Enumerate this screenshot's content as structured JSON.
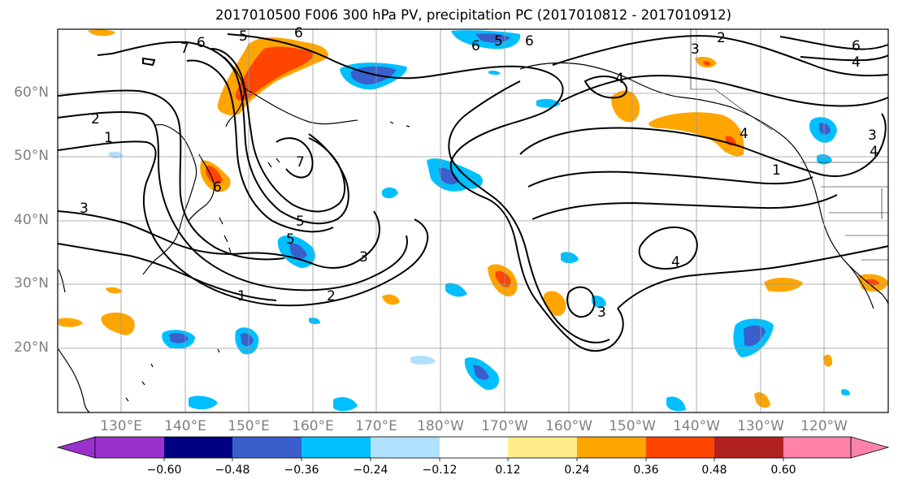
{
  "title": "2017010500 F006 300 hPa PV, precipitation PC (2017010812 - 2017010912)",
  "lat_labels": [
    "60°N",
    "50°N",
    "40°N",
    "30°N",
    "20°N"
  ],
  "lon_labels": [
    "130°E",
    "140°E",
    "150°E",
    "160°E",
    "170°E",
    "180°W",
    "170°W",
    "160°W",
    "150°W",
    "140°W",
    "130°W",
    "120°W"
  ],
  "colorbar": {
    "colors": [
      "#9932cc",
      "#000080",
      "#3a5fcd",
      "#00bfff",
      "#b0e2ff",
      "#ffffff",
      "#ffec8b",
      "#ffa500",
      "#ff4500",
      "#b22222",
      "#ff82ab"
    ],
    "tick_labels": [
      "−0.60",
      "−0.48",
      "−0.36",
      "−0.24",
      "−0.12",
      "0.12",
      "0.24",
      "0.36",
      "0.48",
      "0.60"
    ]
  },
  "contour_labels": [
    "7",
    "6",
    "5",
    "6",
    "2",
    "1",
    "3",
    "6",
    "7",
    "5",
    "2",
    "1",
    "3",
    "5",
    "6",
    "4",
    "3",
    "2",
    "6",
    "4",
    "1",
    "4",
    "3",
    "4",
    "6",
    "5",
    "3",
    "4"
  ]
}
